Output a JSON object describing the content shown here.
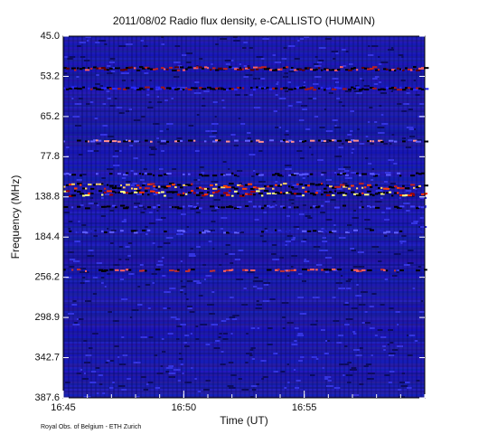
{
  "chart_data": {
    "type": "spectrogram",
    "title": "2011/08/02  Radio flux density, e-CALLISTO (HUMAIN)",
    "xlabel": "Time (UT)",
    "ylabel": "Frequency (MHz)",
    "footer": "Royal Obs. of Belgium - ETH Zurich",
    "xticks": [
      "16:45",
      "16:50",
      "16:55"
    ],
    "yticks": [
      {
        "value": 45,
        "label": "45.0"
      },
      53.2,
      65.2,
      77.8,
      {
        "value": 138.8,
        "label": "138.8"
      },
      184.4,
      256.2,
      298.9,
      342.7,
      387.6
    ]
  }
}
